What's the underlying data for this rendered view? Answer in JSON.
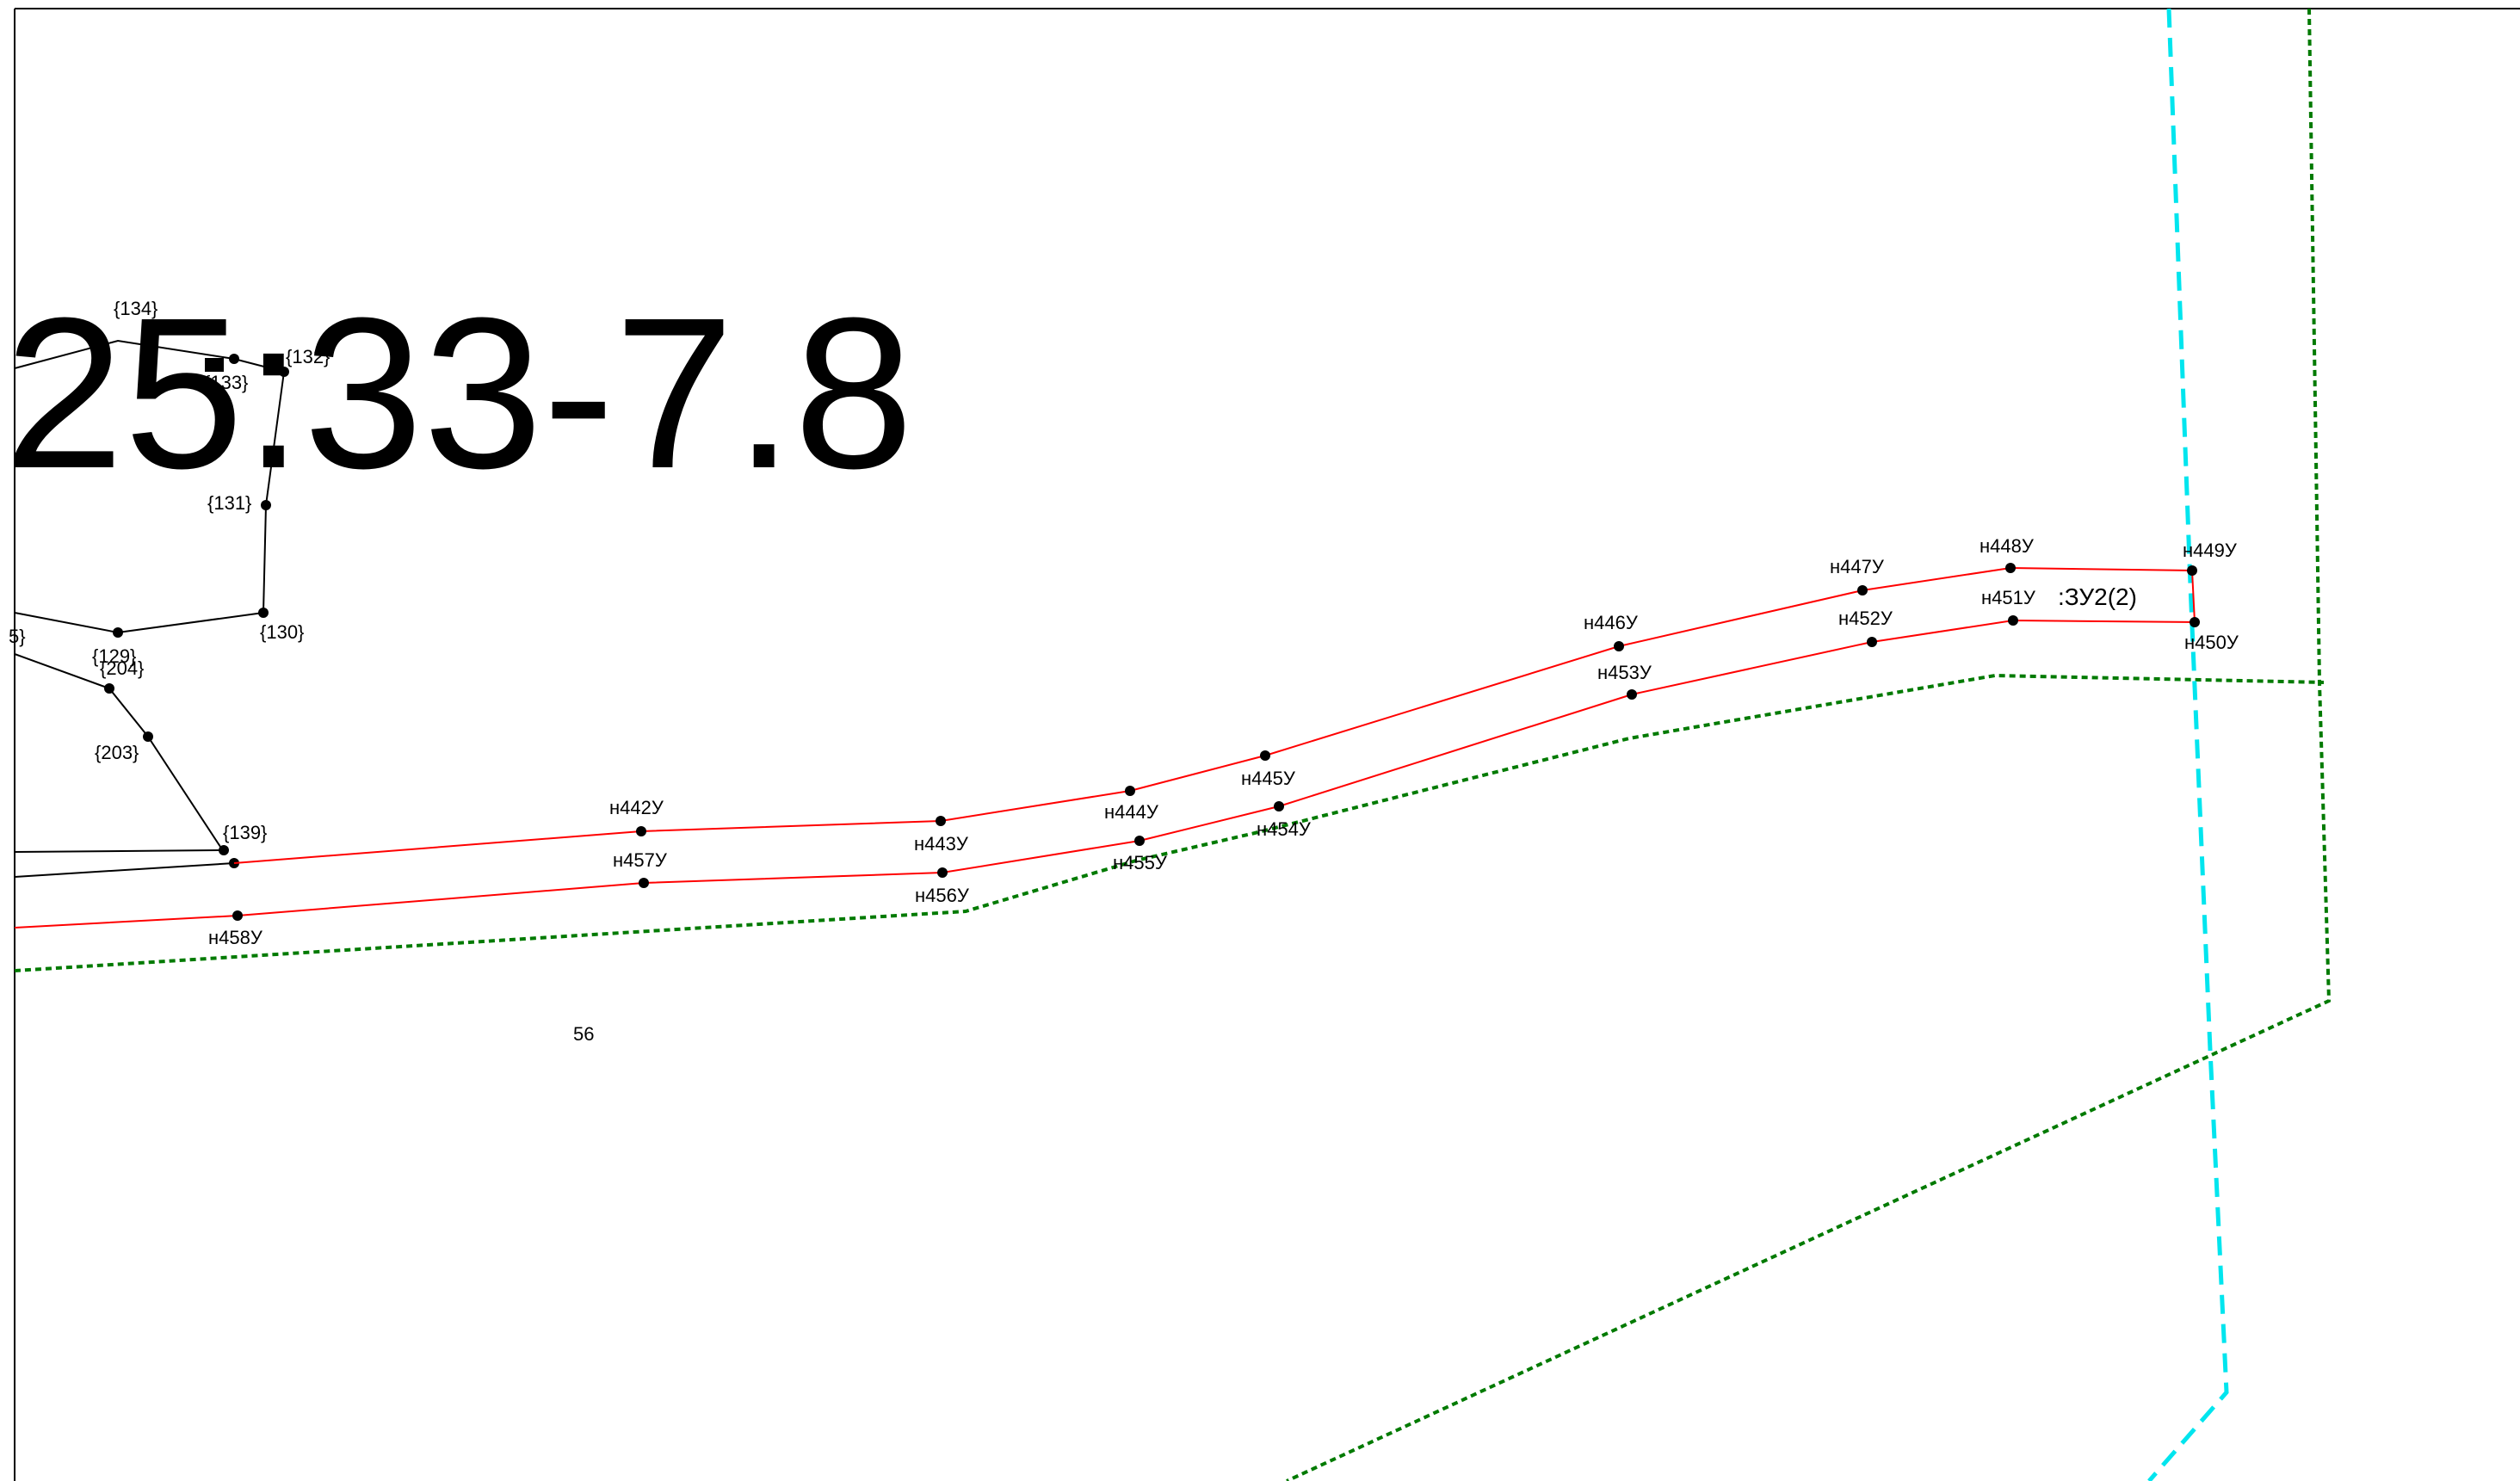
{
  "cadastral_number_fragment": "25:33-7.8",
  "parcel_label": ":ЗУ2(2)",
  "zone_number": "56",
  "colors": {
    "new_parcel_boundary": "#ff0000",
    "existing_boundary": "#000000",
    "zone_boundary": "#007a00",
    "cyan_boundary": "#00e5ee"
  },
  "existing_points": [
    "{134}",
    "{133}",
    "{132}",
    "{131}",
    "{130}",
    "{129}",
    "{204}",
    "{203}",
    "{139}",
    "5}"
  ],
  "new_points_upper": [
    "н442У",
    "н443У",
    "н444У",
    "н445У",
    "н446У",
    "н447У",
    "н448У",
    "н449У"
  ],
  "new_points_lower": [
    "н458У",
    "н457У",
    "н456У",
    "н455У",
    "н454У",
    "н453У",
    "н452У",
    "н451У",
    "н450У"
  ]
}
